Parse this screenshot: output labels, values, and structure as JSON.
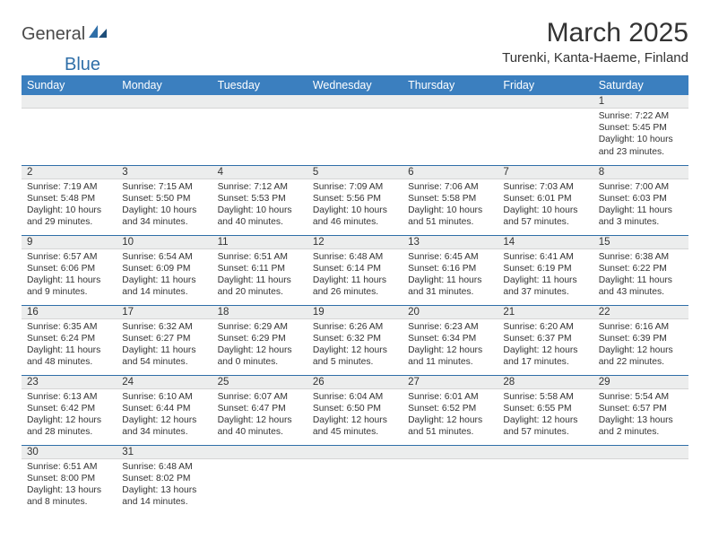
{
  "brand": {
    "part1": "General",
    "part2": "Blue"
  },
  "title": "March 2025",
  "location": "Turenki, Kanta-Haeme, Finland",
  "colors": {
    "header_bg": "#3b7fbf",
    "header_fg": "#ffffff",
    "rule": "#2f6fa8",
    "daynum_bg": "#eceded",
    "text": "#333333",
    "page_bg": "#ffffff"
  },
  "day_headers": [
    "Sunday",
    "Monday",
    "Tuesday",
    "Wednesday",
    "Thursday",
    "Friday",
    "Saturday"
  ],
  "weeks": [
    [
      {
        "n": "",
        "sunrise": "",
        "sunset": "",
        "daylight": ""
      },
      {
        "n": "",
        "sunrise": "",
        "sunset": "",
        "daylight": ""
      },
      {
        "n": "",
        "sunrise": "",
        "sunset": "",
        "daylight": ""
      },
      {
        "n": "",
        "sunrise": "",
        "sunset": "",
        "daylight": ""
      },
      {
        "n": "",
        "sunrise": "",
        "sunset": "",
        "daylight": ""
      },
      {
        "n": "",
        "sunrise": "",
        "sunset": "",
        "daylight": ""
      },
      {
        "n": "1",
        "sunrise": "Sunrise: 7:22 AM",
        "sunset": "Sunset: 5:45 PM",
        "daylight": "Daylight: 10 hours and 23 minutes."
      }
    ],
    [
      {
        "n": "2",
        "sunrise": "Sunrise: 7:19 AM",
        "sunset": "Sunset: 5:48 PM",
        "daylight": "Daylight: 10 hours and 29 minutes."
      },
      {
        "n": "3",
        "sunrise": "Sunrise: 7:15 AM",
        "sunset": "Sunset: 5:50 PM",
        "daylight": "Daylight: 10 hours and 34 minutes."
      },
      {
        "n": "4",
        "sunrise": "Sunrise: 7:12 AM",
        "sunset": "Sunset: 5:53 PM",
        "daylight": "Daylight: 10 hours and 40 minutes."
      },
      {
        "n": "5",
        "sunrise": "Sunrise: 7:09 AM",
        "sunset": "Sunset: 5:56 PM",
        "daylight": "Daylight: 10 hours and 46 minutes."
      },
      {
        "n": "6",
        "sunrise": "Sunrise: 7:06 AM",
        "sunset": "Sunset: 5:58 PM",
        "daylight": "Daylight: 10 hours and 51 minutes."
      },
      {
        "n": "7",
        "sunrise": "Sunrise: 7:03 AM",
        "sunset": "Sunset: 6:01 PM",
        "daylight": "Daylight: 10 hours and 57 minutes."
      },
      {
        "n": "8",
        "sunrise": "Sunrise: 7:00 AM",
        "sunset": "Sunset: 6:03 PM",
        "daylight": "Daylight: 11 hours and 3 minutes."
      }
    ],
    [
      {
        "n": "9",
        "sunrise": "Sunrise: 6:57 AM",
        "sunset": "Sunset: 6:06 PM",
        "daylight": "Daylight: 11 hours and 9 minutes."
      },
      {
        "n": "10",
        "sunrise": "Sunrise: 6:54 AM",
        "sunset": "Sunset: 6:09 PM",
        "daylight": "Daylight: 11 hours and 14 minutes."
      },
      {
        "n": "11",
        "sunrise": "Sunrise: 6:51 AM",
        "sunset": "Sunset: 6:11 PM",
        "daylight": "Daylight: 11 hours and 20 minutes."
      },
      {
        "n": "12",
        "sunrise": "Sunrise: 6:48 AM",
        "sunset": "Sunset: 6:14 PM",
        "daylight": "Daylight: 11 hours and 26 minutes."
      },
      {
        "n": "13",
        "sunrise": "Sunrise: 6:45 AM",
        "sunset": "Sunset: 6:16 PM",
        "daylight": "Daylight: 11 hours and 31 minutes."
      },
      {
        "n": "14",
        "sunrise": "Sunrise: 6:41 AM",
        "sunset": "Sunset: 6:19 PM",
        "daylight": "Daylight: 11 hours and 37 minutes."
      },
      {
        "n": "15",
        "sunrise": "Sunrise: 6:38 AM",
        "sunset": "Sunset: 6:22 PM",
        "daylight": "Daylight: 11 hours and 43 minutes."
      }
    ],
    [
      {
        "n": "16",
        "sunrise": "Sunrise: 6:35 AM",
        "sunset": "Sunset: 6:24 PM",
        "daylight": "Daylight: 11 hours and 48 minutes."
      },
      {
        "n": "17",
        "sunrise": "Sunrise: 6:32 AM",
        "sunset": "Sunset: 6:27 PM",
        "daylight": "Daylight: 11 hours and 54 minutes."
      },
      {
        "n": "18",
        "sunrise": "Sunrise: 6:29 AM",
        "sunset": "Sunset: 6:29 PM",
        "daylight": "Daylight: 12 hours and 0 minutes."
      },
      {
        "n": "19",
        "sunrise": "Sunrise: 6:26 AM",
        "sunset": "Sunset: 6:32 PM",
        "daylight": "Daylight: 12 hours and 5 minutes."
      },
      {
        "n": "20",
        "sunrise": "Sunrise: 6:23 AM",
        "sunset": "Sunset: 6:34 PM",
        "daylight": "Daylight: 12 hours and 11 minutes."
      },
      {
        "n": "21",
        "sunrise": "Sunrise: 6:20 AM",
        "sunset": "Sunset: 6:37 PM",
        "daylight": "Daylight: 12 hours and 17 minutes."
      },
      {
        "n": "22",
        "sunrise": "Sunrise: 6:16 AM",
        "sunset": "Sunset: 6:39 PM",
        "daylight": "Daylight: 12 hours and 22 minutes."
      }
    ],
    [
      {
        "n": "23",
        "sunrise": "Sunrise: 6:13 AM",
        "sunset": "Sunset: 6:42 PM",
        "daylight": "Daylight: 12 hours and 28 minutes."
      },
      {
        "n": "24",
        "sunrise": "Sunrise: 6:10 AM",
        "sunset": "Sunset: 6:44 PM",
        "daylight": "Daylight: 12 hours and 34 minutes."
      },
      {
        "n": "25",
        "sunrise": "Sunrise: 6:07 AM",
        "sunset": "Sunset: 6:47 PM",
        "daylight": "Daylight: 12 hours and 40 minutes."
      },
      {
        "n": "26",
        "sunrise": "Sunrise: 6:04 AM",
        "sunset": "Sunset: 6:50 PM",
        "daylight": "Daylight: 12 hours and 45 minutes."
      },
      {
        "n": "27",
        "sunrise": "Sunrise: 6:01 AM",
        "sunset": "Sunset: 6:52 PM",
        "daylight": "Daylight: 12 hours and 51 minutes."
      },
      {
        "n": "28",
        "sunrise": "Sunrise: 5:58 AM",
        "sunset": "Sunset: 6:55 PM",
        "daylight": "Daylight: 12 hours and 57 minutes."
      },
      {
        "n": "29",
        "sunrise": "Sunrise: 5:54 AM",
        "sunset": "Sunset: 6:57 PM",
        "daylight": "Daylight: 13 hours and 2 minutes."
      }
    ],
    [
      {
        "n": "30",
        "sunrise": "Sunrise: 6:51 AM",
        "sunset": "Sunset: 8:00 PM",
        "daylight": "Daylight: 13 hours and 8 minutes."
      },
      {
        "n": "31",
        "sunrise": "Sunrise: 6:48 AM",
        "sunset": "Sunset: 8:02 PM",
        "daylight": "Daylight: 13 hours and 14 minutes."
      },
      {
        "n": "",
        "sunrise": "",
        "sunset": "",
        "daylight": ""
      },
      {
        "n": "",
        "sunrise": "",
        "sunset": "",
        "daylight": ""
      },
      {
        "n": "",
        "sunrise": "",
        "sunset": "",
        "daylight": ""
      },
      {
        "n": "",
        "sunrise": "",
        "sunset": "",
        "daylight": ""
      },
      {
        "n": "",
        "sunrise": "",
        "sunset": "",
        "daylight": ""
      }
    ]
  ]
}
